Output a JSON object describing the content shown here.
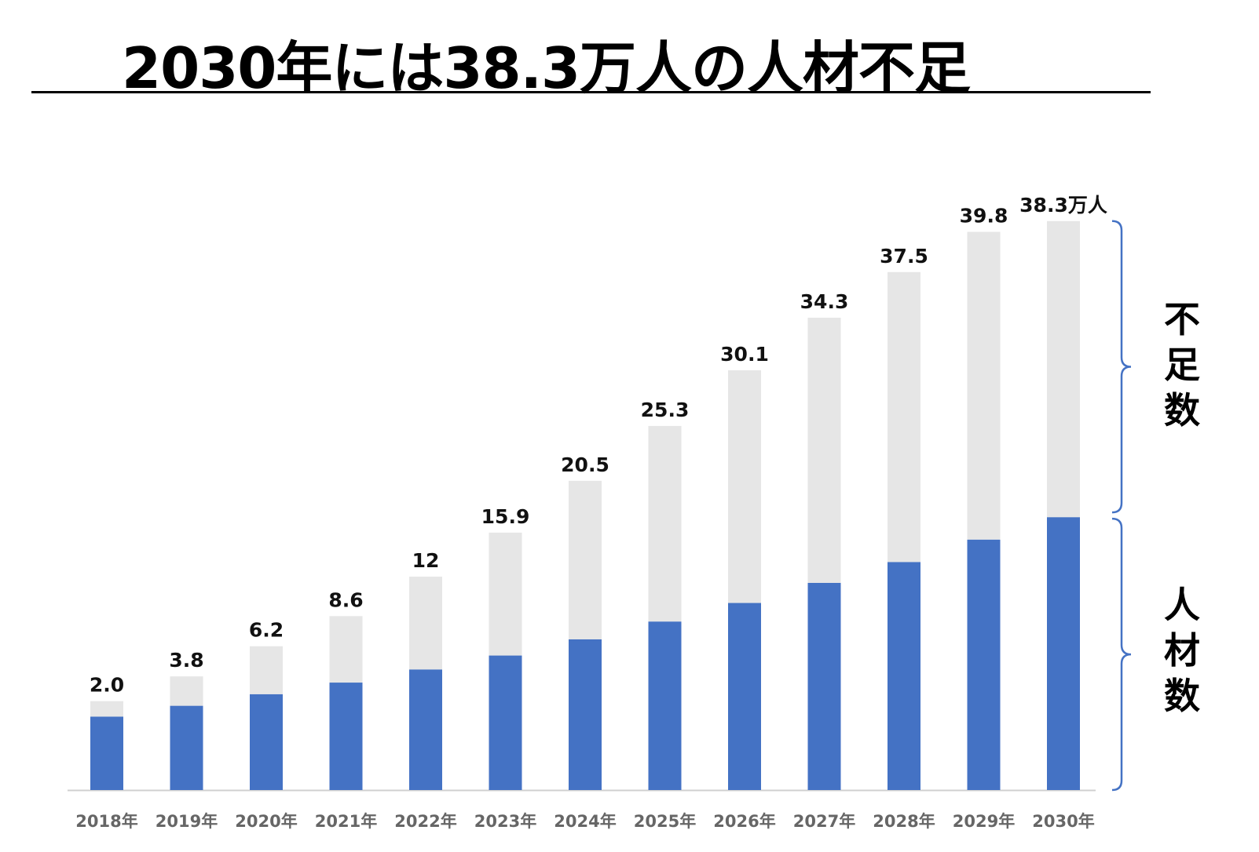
{
  "title": "2030年には38.3万人の人材不足",
  "chart_data": {
    "type": "bar",
    "stacked": true,
    "categories": [
      "2018年",
      "2019年",
      "2020年",
      "2021年",
      "2022年",
      "2023年",
      "2024年",
      "2025年",
      "2026年",
      "2027年",
      "2028年",
      "2029年",
      "2030年"
    ],
    "series": [
      {
        "name": "人材数",
        "color": "#4472C4",
        "values": [
          9.5,
          10.9,
          12.4,
          13.9,
          15.6,
          17.4,
          19.5,
          21.8,
          24.2,
          26.8,
          29.5,
          32.4,
          35.3
        ]
      },
      {
        "name": "不足数",
        "color": "#E6E6E6",
        "values": [
          2.0,
          3.8,
          6.2,
          8.6,
          12,
          15.9,
          20.5,
          25.3,
          30.1,
          34.3,
          37.5,
          39.8,
          38.3
        ]
      }
    ],
    "data_labels": [
      "2.0",
      "3.8",
      "6.2",
      "8.6",
      "12",
      "15.9",
      "20.5",
      "25.3",
      "30.1",
      "34.3",
      "37.5",
      "39.8",
      "38.3万人"
    ],
    "ylim": [
      0,
      75
    ],
    "legend_placement": "right",
    "legend_labels": {
      "shortage": "不足数",
      "workforce": "人材数"
    },
    "bracket_color": "#4472C4"
  }
}
